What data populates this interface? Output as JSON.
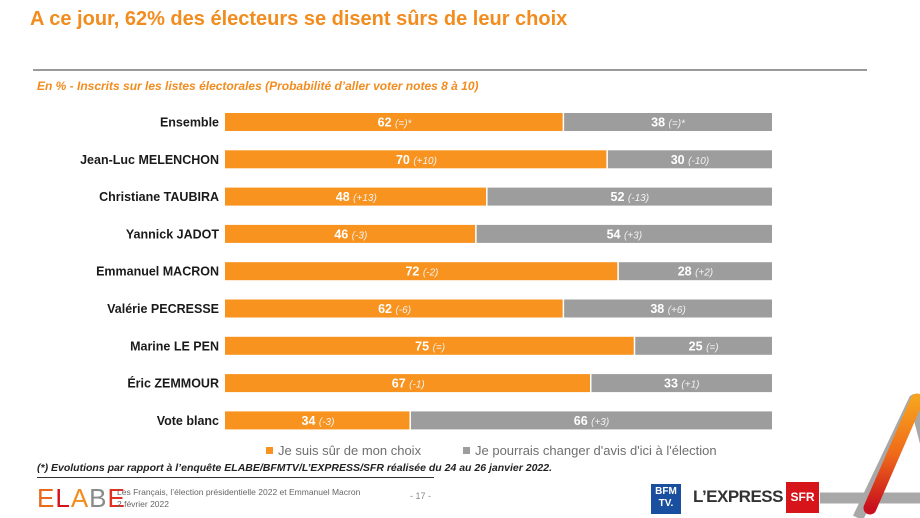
{
  "header": {
    "title": "A ce jour, 62% des électeurs se disent sûrs de leur choix",
    "subtitle": "En % - Inscrits sur les listes électorales (Probabilité d’aller voter notes 8 à 10)"
  },
  "chart_data": {
    "type": "bar",
    "orientation": "horizontal",
    "stacked": true,
    "title": "A ce jour, 62% des électeurs se disent sûrs de leur choix",
    "subtitle": "En % - Inscrits sur les listes électorales (Probabilité d’aller voter notes 8 à 10)",
    "xlim": [
      0,
      100
    ],
    "grid": false,
    "legend_position": "bottom",
    "categories": [
      "Ensemble",
      "Jean-Luc MELENCHON",
      "Christiane TAUBIRA",
      "Yannick JADOT",
      "Emmanuel MACRON",
      "Valérie PECRESSE",
      "Marine LE PEN",
      "Éric ZEMMOUR",
      "Vote blanc"
    ],
    "series": [
      {
        "name": "Je suis sûr de mon choix",
        "color": "#f7931e",
        "values": [
          62,
          70,
          48,
          46,
          72,
          62,
          75,
          67,
          34
        ],
        "evolutions": [
          "(=)*",
          "(+10)",
          "(+13)",
          "(-3)",
          "(-2)",
          "(-6)",
          "(=)",
          "(-1)",
          "(-3)"
        ]
      },
      {
        "name": "Je pourrais changer d'avis d'ici à l'élection",
        "color": "#9d9d9d",
        "values": [
          38,
          30,
          52,
          54,
          28,
          38,
          25,
          33,
          66
        ],
        "evolutions": [
          "(=)*",
          "(-10)",
          "(-13)",
          "(+3)",
          "(+2)",
          "(+6)",
          "(=)",
          "(+1)",
          "(+3)"
        ]
      }
    ]
  },
  "legend": {
    "items": [
      {
        "label": "Je suis sûr de mon choix",
        "color": "#f7931e"
      },
      {
        "label": "Je pourrais changer d'avis d'ici à l'élection",
        "color": "#9d9d9d"
      }
    ]
  },
  "footnote": "(*) Evolutions par rapport à l’enquête ELABE/BFMTV/L’EXPRESS/SFR réalisée du 24 au 26 janvier 2022.",
  "footer": {
    "brand_letters": [
      "E",
      "L",
      "A",
      "B",
      "E"
    ],
    "brand_colors": [
      "#e8681c",
      "#d3121c",
      "#f28c1e",
      "#8a8a8a",
      "#e0301e"
    ],
    "study_title": "Les Français, l’élection présidentielle 2022 et Emmanuel Macron",
    "date": "2 février 2022",
    "page": "- 17 -",
    "page_right": "- 17 -",
    "partners": {
      "bfm_line1": "BFM",
      "bfm_line2": "TV.",
      "lexpress": "L’EXPRESS",
      "sfr": "SFR"
    }
  }
}
